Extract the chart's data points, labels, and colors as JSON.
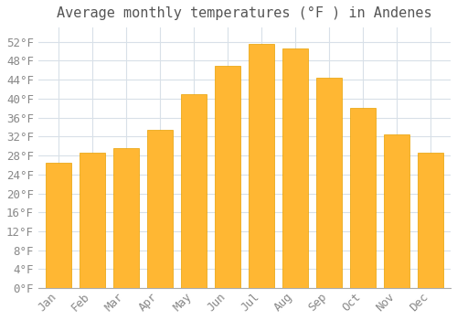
{
  "title": "Average monthly temperatures (°F ) in Andenes",
  "months": [
    "Jan",
    "Feb",
    "Mar",
    "Apr",
    "May",
    "Jun",
    "Jul",
    "Aug",
    "Sep",
    "Oct",
    "Nov",
    "Dec"
  ],
  "values": [
    26.5,
    28.5,
    29.5,
    33.5,
    41.0,
    47.0,
    51.5,
    50.5,
    44.5,
    38.0,
    32.5,
    28.5
  ],
  "bar_color_top": "#FFB830",
  "bar_color_bottom": "#FFD060",
  "bar_edge_color": "#E8A000",
  "background_color": "#FFFFFF",
  "grid_color": "#D8E0E8",
  "text_color": "#888888",
  "title_color": "#555555",
  "ylim": [
    0,
    55
  ],
  "yticks": [
    0,
    4,
    8,
    12,
    16,
    20,
    24,
    28,
    32,
    36,
    40,
    44,
    48,
    52
  ],
  "title_fontsize": 11,
  "tick_fontsize": 9,
  "bar_width": 0.75
}
